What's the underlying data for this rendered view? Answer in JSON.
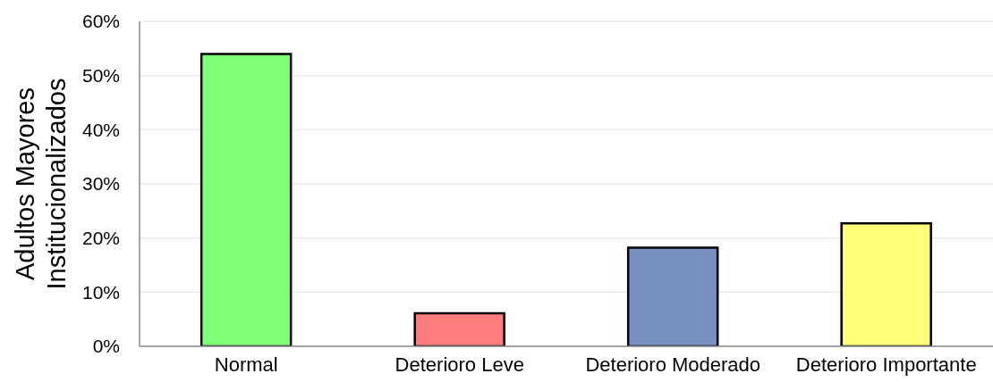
{
  "chart_data": {
    "type": "bar",
    "ylabel": "Adultos Mayores\nInstitucionalizados",
    "categories": [
      "Normal",
      "Deterioro Leve",
      "Deterioro Moderado",
      "Deterioro Importante"
    ],
    "values": [
      54,
      6.1,
      18.2,
      22.7
    ],
    "colors": [
      "#80ff78",
      "#ff7c7c",
      "#7890c0",
      "#ffff7a"
    ],
    "ylim": [
      0,
      60
    ],
    "yticks": [
      {
        "value": 0,
        "label": "0%"
      },
      {
        "value": 10,
        "label": "10%"
      },
      {
        "value": 20,
        "label": "20%"
      },
      {
        "value": 30,
        "label": "30%"
      },
      {
        "value": 40,
        "label": "40%"
      },
      {
        "value": 50,
        "label": "50%"
      },
      {
        "value": 60,
        "label": "60%"
      }
    ],
    "grid": "y"
  }
}
